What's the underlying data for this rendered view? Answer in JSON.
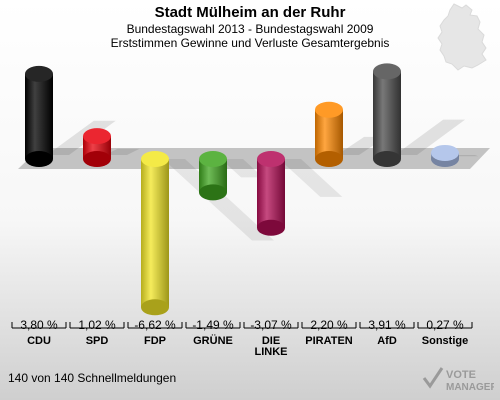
{
  "header": {
    "title": "Stadt Mülheim an der Ruhr",
    "subtitle": "Bundestagswahl 2013 - Bundestagswahl 2009",
    "description": "Erststimmen Gewinne und Verluste Gesamtergebnis"
  },
  "chart_data": {
    "type": "bar",
    "categories": [
      "CDU",
      "SPD",
      "FDP",
      "GRÜNE",
      "DIE LINKE",
      "PIRATEN",
      "AfD",
      "Sonstige"
    ],
    "category_lines": [
      [
        "CDU"
      ],
      [
        "SPD"
      ],
      [
        "FDP"
      ],
      [
        "GRÜNE"
      ],
      [
        "DIE",
        "LINKE"
      ],
      [
        "PIRATEN"
      ],
      [
        "AfD"
      ],
      [
        "Sonstige"
      ]
    ],
    "values": [
      3.8,
      1.02,
      -6.62,
      -1.49,
      -3.07,
      2.2,
      3.91,
      0.27
    ],
    "value_labels": [
      "3,80 %",
      "1,02 %",
      "-6,62 %",
      "-1,49 %",
      "-3,07 %",
      "2,20 %",
      "3,91 %",
      "0,27 %"
    ],
    "colors": [
      "#000000",
      "#e8000b",
      "#f2e626",
      "#3fa51f",
      "#b30d55",
      "#ff8800",
      "#4b4b4b",
      "#a8bde8"
    ],
    "title": "",
    "xlabel": "",
    "ylabel": "",
    "ylim": [
      -6.62,
      3.91
    ]
  },
  "footer": {
    "text": "140 von 140 Schnellmeldungen"
  },
  "logo": {
    "line1": "VOTE",
    "line2": "MANAGER"
  }
}
